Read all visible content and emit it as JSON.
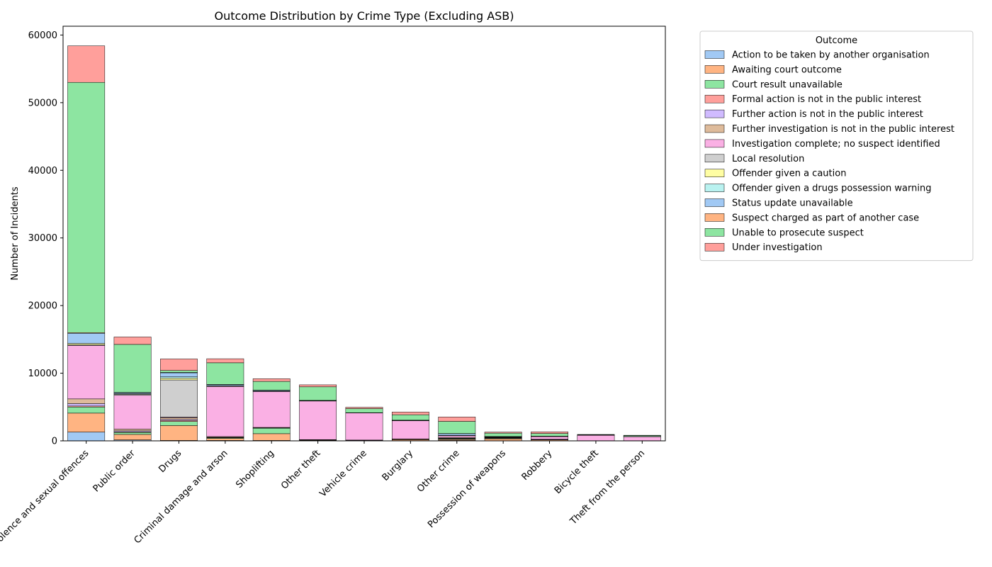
{
  "chart_data": {
    "type": "bar",
    "stacked": true,
    "title": "Outcome Distribution by Crime Type (Excluding ASB)",
    "xlabel": "",
    "ylabel": "Number of Incidents",
    "ylim": [
      0,
      61300
    ],
    "yticks": [
      0,
      10000,
      20000,
      30000,
      40000,
      50000,
      60000
    ],
    "grid": false,
    "legend": {
      "title": "Outcome",
      "placement": "outside-top-right"
    },
    "categories": [
      "Violence and sexual offences",
      "Public order",
      "Drugs",
      "Criminal damage and arson",
      "Shoplifting",
      "Other theft",
      "Vehicle crime",
      "Burglary",
      "Other crime",
      "Possession of weapons",
      "Robbery",
      "Bicycle theft",
      "Theft from the person"
    ],
    "series": [
      {
        "name": "Action to be taken by another organisation",
        "color": "#a1c9f4",
        "values": [
          1300,
          150,
          60,
          60,
          60,
          50,
          20,
          30,
          60,
          20,
          20,
          5,
          5
        ]
      },
      {
        "name": "Awaiting court outcome",
        "color": "#ffb482",
        "values": [
          2800,
          800,
          2200,
          300,
          1000,
          60,
          40,
          150,
          150,
          280,
          120,
          10,
          10
        ]
      },
      {
        "name": "Court result unavailable",
        "color": "#8de5a1",
        "values": [
          900,
          300,
          600,
          100,
          800,
          20,
          20,
          40,
          80,
          80,
          40,
          5,
          5
        ]
      },
      {
        "name": "Formal action is not in the public interest",
        "color": "#ff9f9b",
        "values": [
          150,
          80,
          150,
          30,
          20,
          10,
          10,
          10,
          40,
          20,
          10,
          2,
          2
        ]
      },
      {
        "name": "Further action is not in the public interest",
        "color": "#d0bbff",
        "values": [
          350,
          150,
          150,
          40,
          30,
          15,
          10,
          15,
          60,
          30,
          15,
          2,
          2
        ]
      },
      {
        "name": "Further investigation is not in the public interest",
        "color": "#debb9b",
        "values": [
          700,
          250,
          250,
          100,
          80,
          30,
          20,
          40,
          100,
          40,
          30,
          5,
          5
        ]
      },
      {
        "name": "Investigation complete; no suspect identified",
        "color": "#fab0e4",
        "values": [
          7900,
          5000,
          100,
          7400,
          5300,
          5700,
          4000,
          2700,
          250,
          60,
          400,
          800,
          600
        ]
      },
      {
        "name": "Local resolution",
        "color": "#cfcfcf",
        "values": [
          100,
          150,
          5500,
          100,
          50,
          20,
          5,
          5,
          30,
          20,
          5,
          2,
          2
        ]
      },
      {
        "name": "Offender given a caution",
        "color": "#fffea3",
        "values": [
          200,
          80,
          250,
          40,
          30,
          10,
          5,
          10,
          30,
          50,
          10,
          2,
          2
        ]
      },
      {
        "name": "Offender given a drugs possession warning",
        "color": "#b9f2f0",
        "values": [
          0,
          0,
          200,
          0,
          0,
          0,
          0,
          0,
          0,
          0,
          0,
          0,
          0
        ]
      },
      {
        "name": "Status update unavailable",
        "color": "#a1c9f4",
        "values": [
          1500,
          150,
          600,
          150,
          100,
          60,
          30,
          50,
          250,
          30,
          30,
          10,
          10
        ]
      },
      {
        "name": "Suspect charged as part of another case",
        "color": "#ffb482",
        "values": [
          100,
          50,
          50,
          20,
          20,
          10,
          5,
          10,
          30,
          10,
          10,
          2,
          2
        ]
      },
      {
        "name": "Unable to prosecute suspect",
        "color": "#8de5a1",
        "values": [
          37000,
          7100,
          300,
          3200,
          1300,
          2000,
          600,
          800,
          1800,
          500,
          400,
          60,
          150
        ]
      },
      {
        "name": "Under investigation",
        "color": "#ff9f9b",
        "values": [
          5400,
          1100,
          1700,
          600,
          400,
          300,
          200,
          400,
          650,
          160,
          250,
          40,
          30
        ]
      }
    ]
  }
}
